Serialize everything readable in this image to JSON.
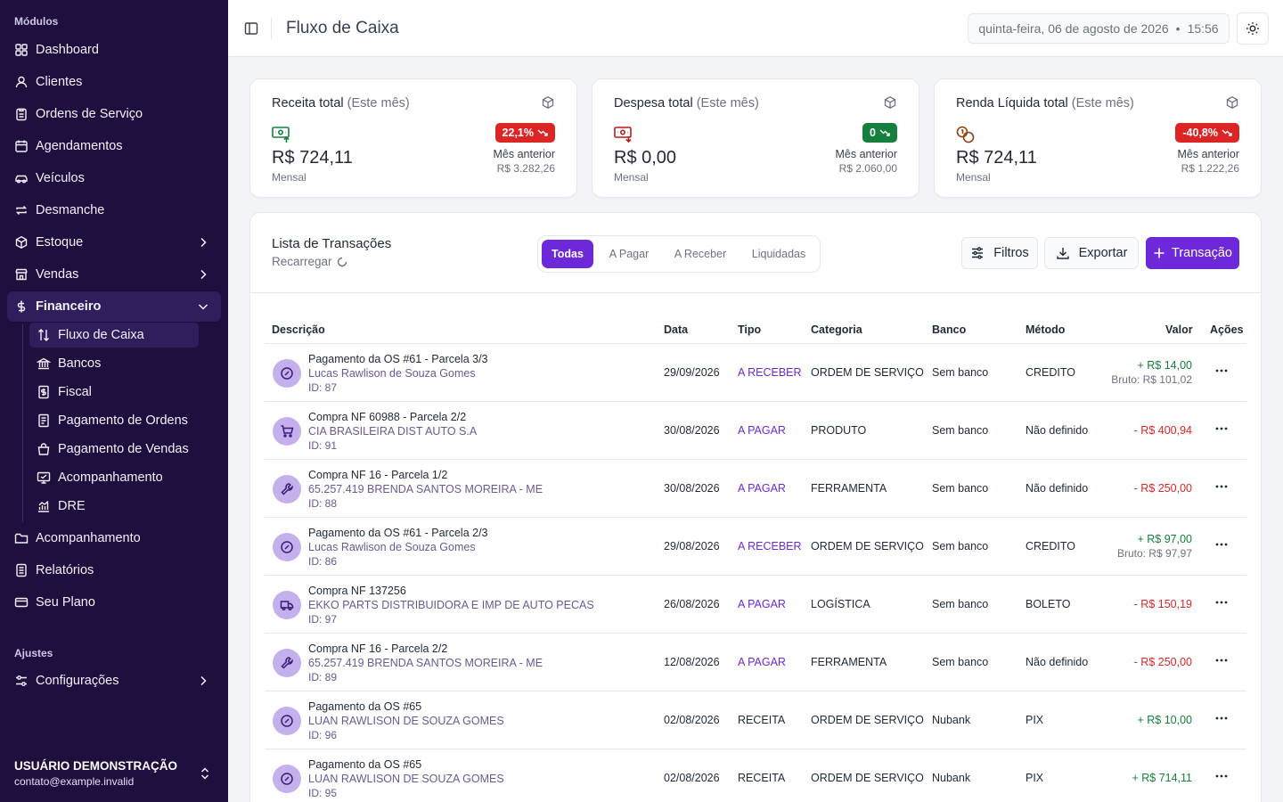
{
  "sidebar": {
    "section_modules": "Módulos",
    "section_settings": "Ajustes",
    "items": [
      {
        "label": "Dashboard",
        "icon": "dashboard-icon"
      },
      {
        "label": "Clientes",
        "icon": "user-icon"
      },
      {
        "label": "Ordens de Serviço",
        "icon": "clipboard-icon"
      },
      {
        "label": "Agendamentos",
        "icon": "calendar-icon"
      },
      {
        "label": "Veículos",
        "icon": "car-icon"
      },
      {
        "label": "Desmanche",
        "icon": "repeat-icon"
      },
      {
        "label": "Estoque",
        "icon": "box-icon"
      },
      {
        "label": "Vendas",
        "icon": "store-icon"
      },
      {
        "label": "Financeiro",
        "icon": "dollar-icon"
      }
    ],
    "sub_items": [
      {
        "label": "Fluxo de Caixa",
        "icon": "arrows-up-down-icon"
      },
      {
        "label": "Bancos",
        "icon": "bank-icon"
      },
      {
        "label": "Fiscal",
        "icon": "receipt-icon"
      },
      {
        "label": "Pagamento de Ordens",
        "icon": "document-icon"
      },
      {
        "label": "Pagamento de Vendas",
        "icon": "bag-icon"
      },
      {
        "label": "Acompanhamento",
        "icon": "monitor-icon"
      },
      {
        "label": "DRE",
        "icon": "chart-icon"
      }
    ],
    "bottom_items": [
      {
        "label": "Acompanhamento",
        "icon": "folder-icon"
      },
      {
        "label": "Relatórios",
        "icon": "report-icon"
      },
      {
        "label": "Seu Plano",
        "icon": "card-icon"
      }
    ],
    "settings_item": {
      "label": "Configurações",
      "icon": "sliders-icon"
    },
    "user": {
      "name": "USUÁRIO DEMONSTRAÇÃO",
      "email": "contato@example.invalid"
    }
  },
  "header": {
    "title": "Fluxo de Caixa",
    "date": "quinta-feira, 06 de agosto de 2026",
    "separator": "•",
    "time": "15:56"
  },
  "cards": [
    {
      "title": "Receita total",
      "period": "(Este mês)",
      "value": "R$ 724,11",
      "sub": "Mensal",
      "badge": "22,1%",
      "badge_color": "#dc2626",
      "prev_label": "Mês anterior",
      "prev_value": "R$ 3.282,26",
      "icon": "money-in-icon"
    },
    {
      "title": "Despesa total",
      "period": "(Este mês)",
      "value": "R$ 0,00",
      "sub": "Mensal",
      "badge": "0",
      "badge_color": "#15803d",
      "prev_label": "Mês anterior",
      "prev_value": "R$ 2.060,00",
      "icon": "money-out-icon"
    },
    {
      "title": "Renda Líquida total",
      "period": "(Este mês)",
      "value": "R$ 724,11",
      "sub": "Mensal",
      "badge": "-40,8%",
      "badge_color": "#dc2626",
      "prev_label": "Mês anterior",
      "prev_value": "R$ 1.222,26",
      "icon": "coins-icon"
    }
  ],
  "transactions": {
    "title": "Lista de Transações",
    "reload": "Recarregar",
    "tabs": [
      "Todas",
      "A Pagar",
      "A Receber",
      "Liquidadas"
    ],
    "buttons": {
      "filters": "Filtros",
      "export": "Exportar",
      "new": "Transação"
    },
    "columns": [
      "Descrição",
      "Data",
      "Tipo",
      "Categoria",
      "Banco",
      "Método",
      "Valor",
      "Ações"
    ],
    "rows": [
      {
        "title": "Pagamento da OS #61 - Parcela 3/3",
        "party": "Lucas Rawlison de Souza Gomes",
        "id": "ID: 87",
        "date": "29/09/2026",
        "type": "A RECEBER",
        "type_link": true,
        "category": "ORDEM DE SERVIÇO",
        "bank": "Sem banco",
        "method": "CREDITO",
        "value": "+ R$ 14,00",
        "positive": true,
        "bruto": "Bruto: R$ 101,02",
        "icon": "check-circle-icon"
      },
      {
        "title": "Compra NF 60988 - Parcela 2/2",
        "party": "CIA BRASILEIRA DIST AUTO S.A",
        "id": "ID: 91",
        "date": "30/08/2026",
        "type": "A PAGAR",
        "type_link": true,
        "category": "PRODUTO",
        "bank": "Sem banco",
        "method": "Não definido",
        "value": "- R$ 400,94",
        "positive": false,
        "bruto": "",
        "icon": "cart-icon"
      },
      {
        "title": "Compra NF 16 - Parcela 1/2",
        "party": "65.257.419 BRENDA SANTOS MOREIRA - ME",
        "id": "ID: 88",
        "date": "30/08/2026",
        "type": "A PAGAR",
        "type_link": true,
        "category": "FERRAMENTA",
        "bank": "Sem banco",
        "method": "Não definido",
        "value": "- R$ 250,00",
        "positive": false,
        "bruto": "",
        "icon": "wrench-icon"
      },
      {
        "title": "Pagamento da OS #61 - Parcela 2/3",
        "party": "Lucas Rawlison de Souza Gomes",
        "id": "ID: 86",
        "date": "29/08/2026",
        "type": "A RECEBER",
        "type_link": true,
        "category": "ORDEM DE SERVIÇO",
        "bank": "Sem banco",
        "method": "CREDITO",
        "value": "+ R$ 97,00",
        "positive": true,
        "bruto": "Bruto: R$ 97,97",
        "icon": "check-circle-icon"
      },
      {
        "title": "Compra NF 137256",
        "party": "EKKO PARTS DISTRIBUIDORA E IMP DE AUTO PECAS",
        "id": "ID: 97",
        "date": "26/08/2026",
        "type": "A PAGAR",
        "type_link": true,
        "category": "LOGÍSTICA",
        "bank": "Sem banco",
        "method": "BOLETO",
        "value": "- R$ 150,19",
        "positive": false,
        "bruto": "",
        "icon": "truck-icon"
      },
      {
        "title": "Compra NF 16 - Parcela 2/2",
        "party": "65.257.419 BRENDA SANTOS MOREIRA - ME",
        "id": "ID: 89",
        "date": "12/08/2026",
        "type": "A PAGAR",
        "type_link": true,
        "category": "FERRAMENTA",
        "bank": "Sem banco",
        "method": "Não definido",
        "value": "- R$ 250,00",
        "positive": false,
        "bruto": "",
        "icon": "wrench-icon"
      },
      {
        "title": "Pagamento da OS #65",
        "party": "LUAN RAWLISON DE SOUZA GOMES",
        "id": "ID: 96",
        "date": "02/08/2026",
        "type": "RECEITA",
        "type_link": false,
        "category": "ORDEM DE SERVIÇO",
        "bank": "Nubank",
        "method": "PIX",
        "value": "+ R$ 10,00",
        "positive": true,
        "bruto": "",
        "icon": "check-circle-icon"
      },
      {
        "title": "Pagamento da OS #65",
        "party": "LUAN RAWLISON DE SOUZA GOMES",
        "id": "ID: 95",
        "date": "02/08/2026",
        "type": "RECEITA",
        "type_link": false,
        "category": "ORDEM DE SERVIÇO",
        "bank": "Nubank",
        "method": "PIX",
        "value": "+ R$ 714,11",
        "positive": true,
        "bruto": "",
        "icon": "check-circle-icon"
      }
    ]
  },
  "colors": {
    "sidebar": "#1e0f3f",
    "accent": "#6d28d9",
    "positive": "#15803d",
    "negative": "#dc2626"
  }
}
